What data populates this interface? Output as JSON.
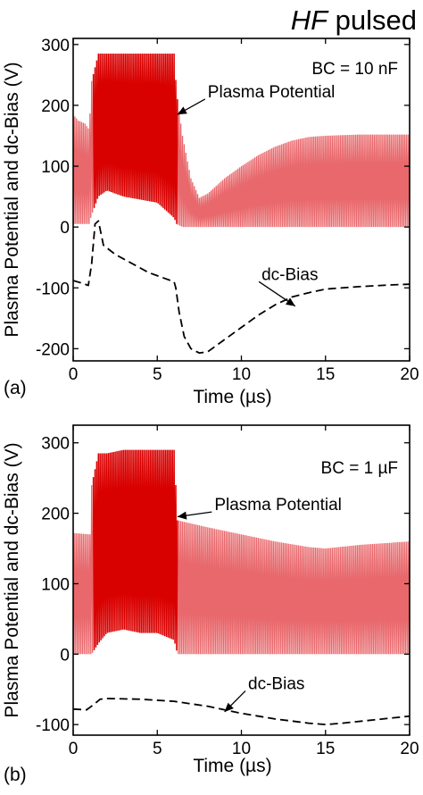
{
  "header": {
    "italic_part": "HF",
    "rest": " pulsed"
  },
  "chart_data": [
    {
      "type": "line",
      "panel_label": "(a)",
      "condition_label": "BC = 10 nF",
      "xlabel": "Time (µs)",
      "ylabel": "Plasma Potential and dc-Bias (V)",
      "xlim": [
        0,
        20
      ],
      "ylim": [
        -220,
        310
      ],
      "xticks": [
        0,
        5,
        10,
        15,
        20
      ],
      "xtick_labels": [
        "0",
        "5",
        "10",
        "15",
        "20"
      ],
      "yticks": [
        -200,
        -100,
        0,
        100,
        200,
        300
      ],
      "ytick_labels": [
        "-200",
        "-100",
        "0",
        "100",
        "200",
        "300"
      ],
      "grid": false,
      "series": [
        {
          "name": "Plasma Potential",
          "style": "rf-envelope",
          "color": "#e8686c",
          "burst_color": "#d90000",
          "rf_period_us": 0.1,
          "burst_interval_us": [
            1.1,
            6.1
          ],
          "envelope": {
            "x": [
              0.0,
              0.3,
              0.7,
              0.95,
              1.1,
              1.5,
              2.0,
              3.0,
              4.0,
              5.0,
              6.0,
              6.15,
              6.5,
              7.0,
              7.5,
              8.0,
              9.0,
              10.0,
              11.0,
              12.0,
              13.0,
              14.0,
              15.0,
              17.0,
              20.0
            ],
            "upper": [
              185,
              175,
              170,
              160,
              240,
              285,
              285,
              285,
              285,
              285,
              285,
              220,
              150,
              80,
              48,
              55,
              80,
              100,
              118,
              132,
              142,
              148,
              150,
              152,
              152
            ],
            "lower": [
              5,
              5,
              5,
              5,
              20,
              50,
              60,
              50,
              45,
              40,
              15,
              5,
              0,
              0,
              0,
              0,
              0,
              0,
              0,
              0,
              0,
              0,
              0,
              0,
              0
            ]
          }
        },
        {
          "name": "dc-Bias",
          "style": "dashed",
          "color": "#000000",
          "x": [
            0.0,
            0.5,
            0.9,
            1.1,
            1.3,
            1.5,
            1.8,
            2.5,
            3.5,
            4.5,
            5.5,
            6.0,
            6.1,
            6.3,
            6.6,
            7.0,
            7.5,
            8.0,
            9.0,
            10.0,
            11.0,
            12.0,
            13.0,
            14.0,
            15.0,
            17.0,
            19.0,
            20.0
          ],
          "y": [
            -88,
            -92,
            -96,
            -60,
            5,
            10,
            -30,
            -45,
            -60,
            -75,
            -85,
            -90,
            -100,
            -140,
            -180,
            -200,
            -207,
            -205,
            -185,
            -165,
            -145,
            -128,
            -115,
            -108,
            -102,
            -98,
            -95,
            -94
          ]
        }
      ],
      "annotations": [
        {
          "text": "Plasma Potential",
          "target": [
            6.2,
            185
          ],
          "label_at": [
            8,
            222
          ]
        },
        {
          "text": "dc-Bias",
          "target": [
            13.2,
            -130
          ],
          "label_at": [
            11.2,
            -78
          ]
        }
      ]
    },
    {
      "type": "line",
      "panel_label": "(b)",
      "condition_label": "BC = 1 µF",
      "xlabel": "Time (µs)",
      "ylabel": "Plasma Potential and dc-Bias (V)",
      "xlim": [
        0,
        20
      ],
      "ylim": [
        -115,
        325
      ],
      "xticks": [
        0,
        5,
        10,
        15,
        20
      ],
      "xtick_labels": [
        "0",
        "5",
        "10",
        "15",
        "20"
      ],
      "yticks": [
        -100,
        0,
        100,
        200,
        300
      ],
      "ytick_labels": [
        "-100",
        "0",
        "100",
        "200",
        "300"
      ],
      "grid": false,
      "series": [
        {
          "name": "Plasma Potential",
          "style": "rf-envelope",
          "color": "#e8686c",
          "burst_color": "#d90000",
          "rf_period_us": 0.1,
          "burst_interval_us": [
            1.1,
            6.1
          ],
          "envelope": {
            "x": [
              0.0,
              1.0,
              1.1,
              1.5,
              2.0,
              3.0,
              4.0,
              5.0,
              6.0,
              6.2,
              8.0,
              10.0,
              12.0,
              14.0,
              15.0,
              17.0,
              20.0
            ],
            "upper": [
              172,
              170,
              240,
              285,
              285,
              290,
              290,
              290,
              290,
              190,
              180,
              170,
              160,
              152,
              150,
              155,
              160
            ],
            "lower": [
              0,
              0,
              0,
              15,
              30,
              35,
              30,
              30,
              20,
              0,
              0,
              0,
              0,
              0,
              0,
              0,
              0
            ]
          }
        },
        {
          "name": "dc-Bias",
          "style": "dashed",
          "color": "#000000",
          "x": [
            0.0,
            0.8,
            1.2,
            1.6,
            2.0,
            4.0,
            6.0,
            8.0,
            10.0,
            12.0,
            14.0,
            15.0,
            16.0,
            18.0,
            20.0
          ],
          "y": [
            -78,
            -79,
            -72,
            -64,
            -63,
            -64,
            -67,
            -74,
            -84,
            -92,
            -98,
            -100,
            -98,
            -93,
            -88
          ]
        }
      ],
      "annotations": [
        {
          "text": "Plasma Potential",
          "target": [
            6.2,
            195
          ],
          "label_at": [
            8.4,
            212
          ]
        },
        {
          "text": "dc-Bias",
          "target": [
            9.0,
            -82
          ],
          "label_at": [
            10.4,
            -42
          ]
        }
      ]
    }
  ]
}
